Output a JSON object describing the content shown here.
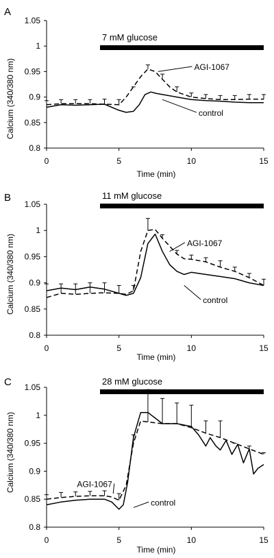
{
  "chart_data": [
    {
      "panel": "A",
      "type": "line",
      "bar_label": "7 mM glucose",
      "xlabel": "Time (min)",
      "ylabel": "Calcium (340/380 nm)",
      "xlim": [
        0,
        15
      ],
      "ylim": [
        0.8,
        1.05
      ],
      "xticks": [
        "0",
        "5",
        "10",
        "15"
      ],
      "yticks": [
        "0.8",
        "0.85",
        "0.9",
        "0.95",
        "1",
        "1.05"
      ],
      "stimulus_period": [
        3.6,
        15
      ],
      "annotations": [
        {
          "text": "AGI-1067",
          "x": 10.2,
          "y": 0.96,
          "line_to": [
            7.7,
            0.95
          ]
        },
        {
          "text": "control",
          "x": 10.5,
          "y": 0.87,
          "line_to": [
            8.0,
            0.895
          ]
        }
      ],
      "series": [
        {
          "name": "control",
          "style": "solid",
          "x": [
            0,
            1,
            2,
            3,
            4,
            5,
            5.5,
            6,
            6.4,
            6.8,
            7.2,
            7.6,
            8,
            9,
            10,
            11,
            12,
            13,
            14,
            15
          ],
          "y": [
            0.88,
            0.885,
            0.884,
            0.885,
            0.886,
            0.874,
            0.87,
            0.872,
            0.885,
            0.905,
            0.91,
            0.907,
            0.905,
            0.9,
            0.895,
            0.893,
            0.892,
            0.89,
            0.889,
            0.889
          ]
        },
        {
          "name": "AGI-1067",
          "style": "dashed",
          "x": [
            0,
            1,
            2,
            3,
            4,
            5,
            5.5,
            6,
            6.5,
            7,
            7.5,
            8,
            8.5,
            9,
            10,
            11,
            12,
            13,
            14,
            15
          ],
          "y": [
            0.885,
            0.887,
            0.887,
            0.887,
            0.886,
            0.885,
            0.9,
            0.92,
            0.94,
            0.955,
            0.95,
            0.935,
            0.92,
            0.91,
            0.9,
            0.897,
            0.895,
            0.895,
            0.896,
            0.896
          ]
        }
      ],
      "error_bars": {
        "x": [
          0,
          1,
          2,
          3,
          4,
          5,
          6,
          7,
          8,
          9,
          10,
          11,
          12,
          13,
          14,
          15
        ],
        "y_top": [
          0.893,
          0.895,
          0.895,
          0.895,
          0.896,
          0.895,
          0.92,
          0.963,
          0.945,
          0.92,
          0.908,
          0.905,
          0.903,
          0.903,
          0.905,
          0.905
        ]
      }
    },
    {
      "panel": "B",
      "type": "line",
      "bar_label": "11 mM glucose",
      "xlabel": "Time (min)",
      "ylabel": "Calcium (340/380 nm)",
      "xlim": [
        0,
        15
      ],
      "ylim": [
        0.8,
        1.05
      ],
      "xticks": [
        "0",
        "5",
        "10",
        "15"
      ],
      "yticks": [
        "0.8",
        "0.85",
        "0.9",
        "0.95",
        "1",
        "1.05"
      ],
      "stimulus_period": [
        3.6,
        15
      ],
      "annotations": [
        {
          "text": "AGI-1067",
          "x": 9.7,
          "y": 0.977,
          "line_to": [
            8.5,
            0.96
          ]
        },
        {
          "text": "control",
          "x": 10.8,
          "y": 0.868,
          "line_to": [
            9.5,
            0.895
          ]
        }
      ],
      "series": [
        {
          "name": "control",
          "style": "solid",
          "x": [
            0,
            1,
            2,
            3,
            4,
            5,
            5.5,
            6,
            6.5,
            7,
            7.5,
            8,
            8.5,
            9,
            9.5,
            10,
            11,
            12,
            13,
            14,
            15
          ],
          "y": [
            0.885,
            0.89,
            0.887,
            0.892,
            0.888,
            0.88,
            0.876,
            0.88,
            0.91,
            0.975,
            0.993,
            0.96,
            0.935,
            0.922,
            0.916,
            0.92,
            0.916,
            0.912,
            0.908,
            0.9,
            0.895
          ]
        },
        {
          "name": "AGI-1067",
          "style": "dashed",
          "x": [
            0,
            1,
            2,
            3,
            4,
            5,
            5.5,
            6,
            6.5,
            7,
            7.5,
            8,
            8.5,
            9,
            9.5,
            10,
            11,
            12,
            13,
            14,
            15
          ],
          "y": [
            0.872,
            0.88,
            0.878,
            0.88,
            0.881,
            0.88,
            0.878,
            0.885,
            0.96,
            1.0,
            1.002,
            0.985,
            0.97,
            0.955,
            0.946,
            0.945,
            0.94,
            0.93,
            0.922,
            0.91,
            0.895
          ]
        }
      ],
      "error_bars": {
        "x": [
          0,
          1,
          2,
          3,
          4,
          5,
          6,
          7,
          8,
          9,
          10,
          11,
          12,
          13,
          14,
          15
        ],
        "y_top": [
          0.898,
          0.898,
          0.898,
          0.9,
          0.9,
          0.895,
          0.895,
          1.023,
          0.992,
          0.962,
          0.953,
          0.948,
          0.942,
          0.93,
          0.918,
          0.907
        ]
      }
    },
    {
      "panel": "C",
      "type": "line",
      "bar_label": "28 mM glucose",
      "xlabel": "Time (min)",
      "ylabel": "Calcium (340/380 nm)",
      "xlim": [
        0,
        15
      ],
      "ylim": [
        0.8,
        1.05
      ],
      "xticks": [
        "0",
        "5",
        "10",
        "15"
      ],
      "yticks": [
        "0.8",
        "0.85",
        "0.9",
        "0.95",
        "1",
        "1.05"
      ],
      "stimulus_period": [
        3.6,
        15
      ],
      "annotations": [
        {
          "text": "AGI-1067",
          "x": 2.1,
          "y": 0.878,
          "line_to": [
            4.6,
            0.86
          ]
        },
        {
          "text": "control",
          "x": 7.2,
          "y": 0.845,
          "line_to": [
            6.0,
            0.835
          ]
        }
      ],
      "series": [
        {
          "name": "control",
          "style": "solid",
          "x": [
            0,
            1,
            2,
            3,
            4,
            4.5,
            5,
            5.3,
            5.6,
            6,
            6.5,
            7,
            7.5,
            8,
            9,
            10,
            10.5,
            11,
            11.3,
            11.7,
            12,
            12.4,
            12.8,
            13.2,
            13.6,
            14,
            14.3,
            14.6,
            15
          ],
          "y": [
            0.84,
            0.845,
            0.848,
            0.85,
            0.85,
            0.845,
            0.832,
            0.84,
            0.88,
            0.96,
            1.005,
            1.005,
            0.995,
            0.985,
            0.985,
            0.98,
            0.965,
            0.945,
            0.96,
            0.945,
            0.938,
            0.955,
            0.93,
            0.948,
            0.915,
            0.94,
            0.895,
            0.905,
            0.912
          ]
        },
        {
          "name": "AGI-1067",
          "style": "dashed",
          "x": [
            0,
            1,
            2,
            3,
            4,
            4.5,
            5,
            5.5,
            6,
            6.5,
            7,
            8,
            9,
            10,
            11,
            12,
            13,
            14,
            15
          ],
          "y": [
            0.85,
            0.853,
            0.855,
            0.856,
            0.856,
            0.854,
            0.848,
            0.875,
            0.95,
            0.99,
            0.988,
            0.985,
            0.985,
            0.978,
            0.968,
            0.96,
            0.95,
            0.94,
            0.93
          ]
        }
      ],
      "error_bars": {
        "x": [
          0,
          1,
          2,
          3,
          4,
          5,
          6,
          7,
          8,
          9,
          10,
          11,
          12,
          13,
          14,
          15
        ],
        "y_top": [
          0.858,
          0.862,
          0.863,
          0.864,
          0.865,
          0.86,
          0.965,
          1.046,
          1.03,
          1.022,
          1.018,
          0.99,
          0.99,
          0.95,
          0.945,
          0.933
        ]
      }
    }
  ]
}
